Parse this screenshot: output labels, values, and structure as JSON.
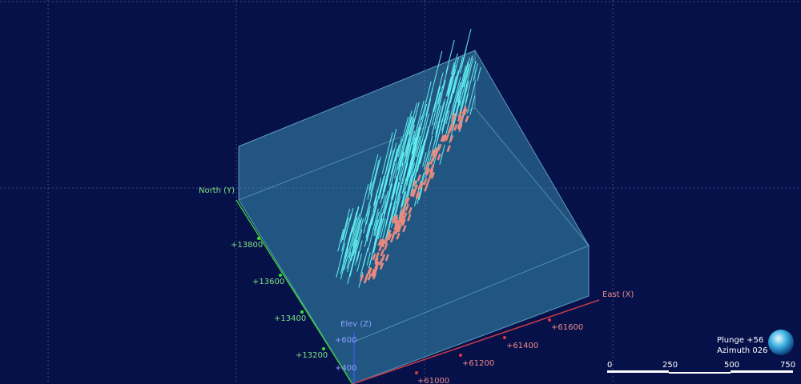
{
  "axes": {
    "north": {
      "label": "North (Y)",
      "ticks": [
        "+13800",
        "+13600",
        "+13400",
        "+13200"
      ]
    },
    "east": {
      "label": "East (X)",
      "ticks": [
        "+61600",
        "+61400",
        "+61200",
        "+61000"
      ]
    },
    "elev": {
      "label": "Elev (Z)",
      "ticks": [
        "+600",
        "+400"
      ]
    }
  },
  "orientation": {
    "plunge": "Plunge +56",
    "azimuth": "Azimuth 026"
  },
  "scale_bar": {
    "labels": [
      "0",
      "250",
      "500",
      "750"
    ]
  }
}
